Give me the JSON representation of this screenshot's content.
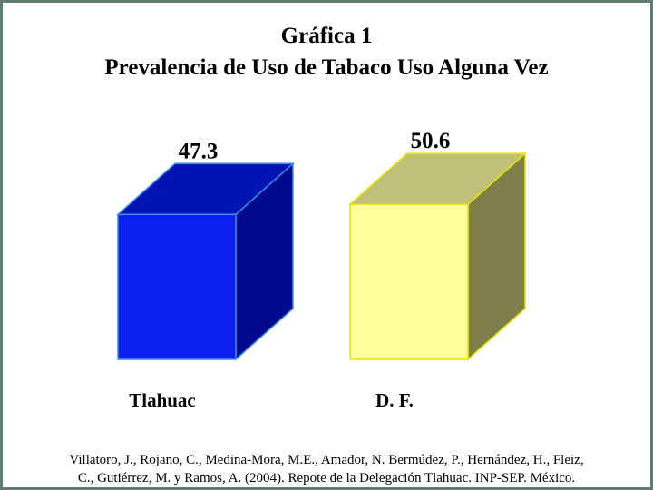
{
  "title": "Gráfica 1",
  "subtitle": "Prevalencia de Uso de Tabaco Uso Alguna Vez",
  "chart_data": {
    "type": "bar",
    "title": "Gráfica 1",
    "subtitle": "Prevalencia de Uso de Tabaco Uso Alguna Vez",
    "categories": [
      "Tlahuac",
      "D. F."
    ],
    "values": [
      47.3,
      50.6
    ],
    "value_labels": [
      "47.3",
      "50.6"
    ],
    "xlabel": "",
    "ylabel": "",
    "grid": false,
    "legend": "none",
    "style": "3d-box",
    "bar_colors": [
      {
        "front": "#0a20f0",
        "side": "#000a8c",
        "top": "#0014b4",
        "edge": "#3a8ce6"
      },
      {
        "front": "#ffff9c",
        "side": "#7f7f4b",
        "top": "#c0c07a",
        "edge": "#e6e600"
      }
    ]
  },
  "citation": {
    "line1": "Villatoro, J., Rojano, C., Medina-Mora, M.E., Amador, N. Bermúdez, P., Hernández, H., Fleiz,",
    "line2": "C., Gutiérrez, M. y Ramos, A. (2004). Repote de la Delegación Tlahuac. INP-SEP. México."
  },
  "colors": {
    "frame_border": "#5e7f6e",
    "background": "#ffffff"
  }
}
